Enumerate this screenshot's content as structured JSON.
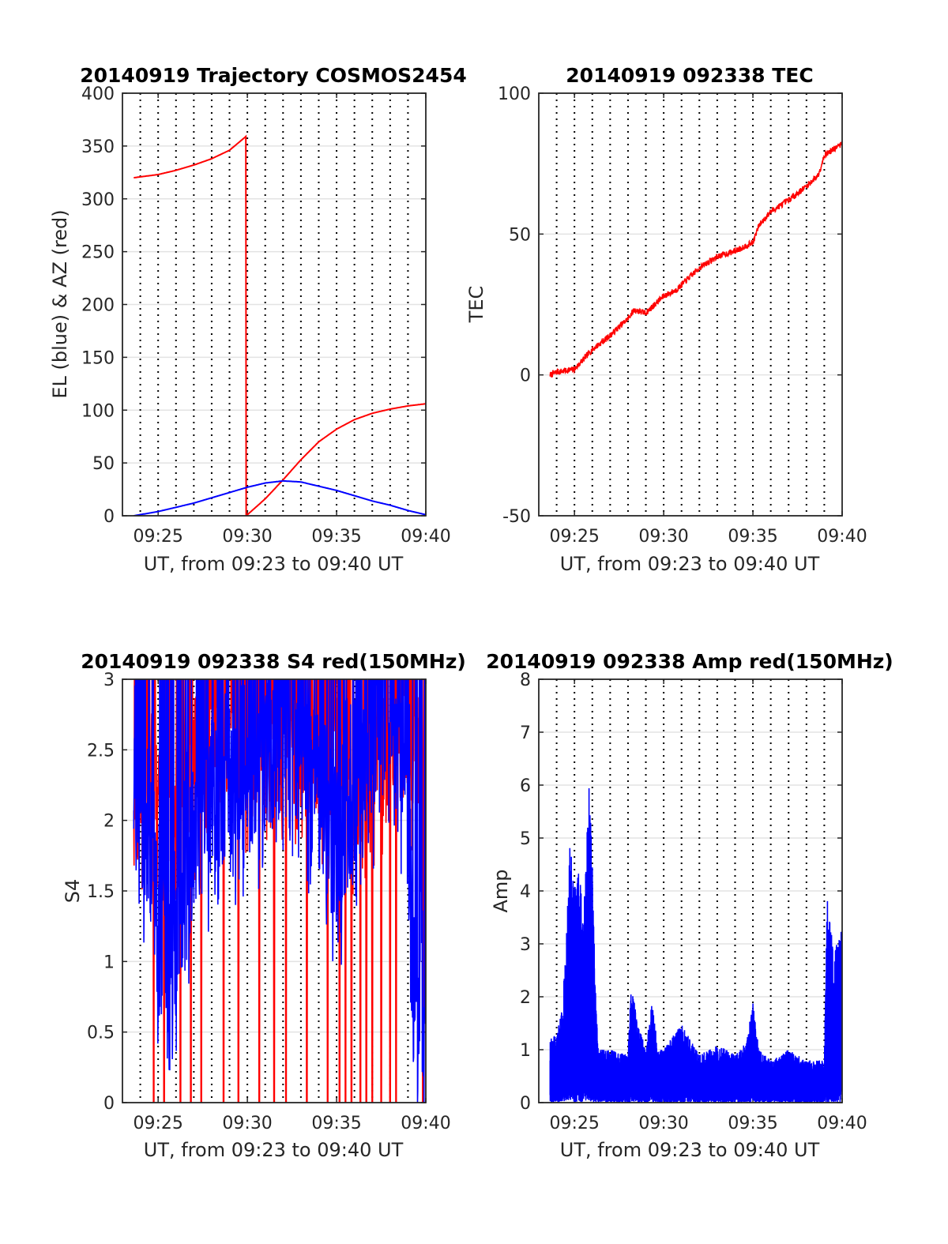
{
  "colors": {
    "az": "#ff0000",
    "el": "#0000ff",
    "s4_red": "#ff0000",
    "s4_blue": "#0000ff",
    "amp": "#0000ff",
    "tec": "#ff0000"
  },
  "chart_data": [
    {
      "id": "trajectory",
      "type": "line",
      "title": "20140919 Trajectory COSMOS2454",
      "xlabel": "UT, from 09:23 to 09:40 UT",
      "ylabel": "EL (blue) & AZ (red)",
      "xlim": [
        "09:23",
        "09:40"
      ],
      "ylim": [
        0,
        400
      ],
      "xticks": [
        "09:25",
        "09:30",
        "09:35",
        "09:40"
      ],
      "yticks": [
        0,
        50,
        100,
        150,
        200,
        250,
        300,
        350,
        400
      ],
      "grid": true,
      "x_grid_minor_minutes": 1,
      "series": [
        {
          "role": "AZ",
          "color": "red",
          "x": [
            "09:23:38",
            "09:25",
            "09:26",
            "09:27",
            "09:28",
            "09:29",
            "09:29:55",
            "09:29:56",
            "09:31",
            "09:32",
            "09:33",
            "09:34",
            "09:35",
            "09:36",
            "09:37",
            "09:38",
            "09:39",
            "09:40"
          ],
          "y": [
            320,
            323,
            327,
            332,
            338,
            346,
            359,
            0,
            16,
            34,
            53,
            70,
            82,
            91,
            97,
            101,
            104,
            106
          ]
        },
        {
          "role": "EL",
          "color": "blue",
          "x": [
            "09:23:38",
            "09:25",
            "09:26",
            "09:27",
            "09:28",
            "09:29",
            "09:30",
            "09:31",
            "09:32",
            "09:33",
            "09:34",
            "09:35",
            "09:36",
            "09:37",
            "09:38",
            "09:39",
            "09:40"
          ],
          "y": [
            0,
            4,
            8,
            12,
            17,
            22,
            27,
            31,
            33,
            32,
            28,
            24,
            19,
            14,
            10,
            5,
            1
          ]
        }
      ]
    },
    {
      "id": "tec",
      "type": "line",
      "title": "20140919 092338 TEC",
      "xlabel": "UT, from 09:23 to 09:40 UT",
      "ylabel": "TEC",
      "xlim": [
        "09:23",
        "09:40"
      ],
      "ylim": [
        -50,
        100
      ],
      "xticks": [
        "09:25",
        "09:30",
        "09:35",
        "09:40"
      ],
      "yticks": [
        -50,
        0,
        50,
        100
      ],
      "grid": true,
      "x_grid_minor_minutes": 1,
      "series": [
        {
          "color": "red",
          "x": [
            "09:23:38",
            "09:24",
            "09:25",
            "09:26",
            "09:27",
            "09:28",
            "09:28:20",
            "09:29",
            "09:30",
            "09:30:40",
            "09:31",
            "09:32",
            "09:33",
            "09:34",
            "09:35",
            "09:35:20",
            "09:36",
            "09:37",
            "09:38",
            "09:38:40",
            "09:39",
            "09:40"
          ],
          "y": [
            0,
            1,
            2,
            9,
            14,
            20,
            23,
            22,
            28,
            30,
            32,
            38,
            42,
            44,
            47,
            53,
            58,
            62,
            67,
            71,
            78,
            82
          ]
        }
      ]
    },
    {
      "id": "s4",
      "type": "line",
      "title": "20140919 092338 S4 red(150MHz)",
      "xlabel": "UT, from 09:23 to 09:40 UT",
      "ylabel": "S4",
      "xlim": [
        "09:23",
        "09:40"
      ],
      "ylim": [
        0,
        3
      ],
      "xticks": [
        "09:25",
        "09:30",
        "09:35",
        "09:40"
      ],
      "yticks": [
        0,
        0.5,
        1,
        1.5,
        2,
        2.5,
        3
      ],
      "grid": true,
      "x_grid_minor_minutes": 1,
      "series": [
        {
          "color": "red",
          "envelope_x": [
            "09:23:38",
            "09:24",
            "09:25",
            "09:26",
            "09:27",
            "09:28",
            "09:29",
            "09:30",
            "09:31",
            "09:32",
            "09:33",
            "09:34",
            "09:35",
            "09:36",
            "09:37",
            "09:38",
            "09:39",
            "09:40"
          ],
          "envelope_y": [
            2.5,
            2.4,
            2.2,
            2.0,
            2.4,
            2.6,
            2.7,
            2.6,
            2.6,
            2.7,
            2.7,
            2.6,
            2.5,
            2.4,
            2.5,
            2.6,
            2.7,
            2.5
          ],
          "drops_to_zero_at": [
            "09:24:45",
            "09:25:20",
            "09:26:15",
            "09:26:50",
            "09:27:25",
            "09:28:40",
            "09:29:30",
            "09:30:40",
            "09:31:30",
            "09:32:10",
            "09:33:20",
            "09:34:30",
            "09:35:10",
            "09:35:30",
            "09:35:50",
            "09:36:20",
            "09:36:40",
            "09:37:00",
            "09:37:30",
            "09:38:00",
            "09:38:20",
            "09:39:50"
          ]
        },
        {
          "color": "blue",
          "envelope_x": [
            "09:23:38",
            "09:24",
            "09:24:40",
            "09:25",
            "09:25:30",
            "09:26",
            "09:27",
            "09:28",
            "09:29",
            "09:30",
            "09:31",
            "09:32",
            "09:33",
            "09:34",
            "09:35",
            "09:36",
            "09:37",
            "09:38",
            "09:39",
            "09:39:15",
            "09:39:30",
            "09:40"
          ],
          "envelope_y": [
            2.2,
            2.1,
            1.8,
            1.2,
            1.0,
            1.3,
            1.9,
            2.2,
            2.3,
            2.4,
            2.5,
            2.6,
            2.5,
            2.2,
            1.8,
            2.3,
            2.5,
            2.6,
            2.4,
            0.8,
            0.75,
            0.7
          ]
        }
      ]
    },
    {
      "id": "amp",
      "type": "line",
      "title": "20140919 092338 Amp red(150MHz)",
      "xlabel": "UT, from 09:23 to 09:40 UT",
      "ylabel": "Amp",
      "xlim": [
        "09:23",
        "09:40"
      ],
      "ylim": [
        0,
        8
      ],
      "xticks": [
        "09:25",
        "09:30",
        "09:35",
        "09:40"
      ],
      "yticks": [
        0,
        1,
        2,
        3,
        4,
        5,
        6,
        7,
        8
      ],
      "grid": true,
      "x_grid_minor_minutes": 1,
      "series": [
        {
          "color": "blue",
          "envelope_x": [
            "09:23:38",
            "09:24",
            "09:24:20",
            "09:24:30",
            "09:24:45",
            "09:25",
            "09:25:15",
            "09:25:30",
            "09:25:50",
            "09:26",
            "09:26:10",
            "09:26:20",
            "09:27",
            "09:28",
            "09:28:10",
            "09:28:30",
            "09:29",
            "09:29:20",
            "09:29:40",
            "09:30",
            "09:31",
            "09:32",
            "09:33",
            "09:34",
            "09:34:40",
            "09:35",
            "09:35:20",
            "09:36",
            "09:37",
            "09:38",
            "09:39",
            "09:39:10",
            "09:39:30",
            "09:40"
          ],
          "envelope_y": [
            1.2,
            1.3,
            1.8,
            3.0,
            4.9,
            4.2,
            4.6,
            3.5,
            6.1,
            4.5,
            2.2,
            1.0,
            1.0,
            0.9,
            2.3,
            1.6,
            1.0,
            2.0,
            1.0,
            1.0,
            1.5,
            0.9,
            1.1,
            0.9,
            1.2,
            1.9,
            1.0,
            0.8,
            1.0,
            0.8,
            0.8,
            3.9,
            2.9,
            3.3
          ]
        }
      ]
    }
  ]
}
